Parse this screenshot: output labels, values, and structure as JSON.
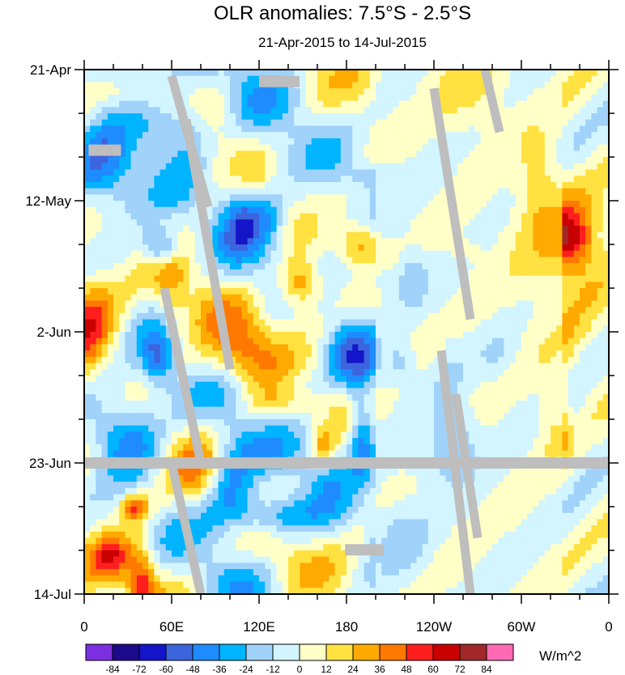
{
  "chart_data": {
    "type": "heatmap",
    "title": "OLR anomalies: 7.5°S - 2.5°S",
    "subtitle": "21-Apr-2015 to 14-Jul-2015",
    "x_ticks": [
      "0",
      "60E",
      "120E",
      "180",
      "120W",
      "60W",
      "0"
    ],
    "x_tick_values": [
      0,
      60,
      120,
      180,
      240,
      300,
      360
    ],
    "xlim": [
      0,
      360
    ],
    "y_ticks": [
      "21-Apr",
      "12-May",
      "2-Jun",
      "23-Jun",
      "14-Jul"
    ],
    "y_tick_days": [
      0,
      21,
      42,
      63,
      84
    ],
    "ylim": [
      0,
      84
    ],
    "colorbar": {
      "unit": "W/m^2",
      "levels": [
        "-84",
        "-72",
        "-60",
        "-48",
        "-36",
        "-24",
        "-12",
        "0",
        "12",
        "24",
        "36",
        "48",
        "60",
        "72",
        "84"
      ],
      "colors": [
        "#7b2fe0",
        "#1c0a8c",
        "#1414c8",
        "#3c64dc",
        "#1e8cff",
        "#00b4ff",
        "#a0d2fa",
        "#d2f5ff",
        "#ffffc8",
        "#ffe141",
        "#ffaa00",
        "#ff7800",
        "#ff1e1e",
        "#c80000",
        "#a02828",
        "#ff69b4"
      ]
    },
    "missing_color": "#bebebe"
  }
}
